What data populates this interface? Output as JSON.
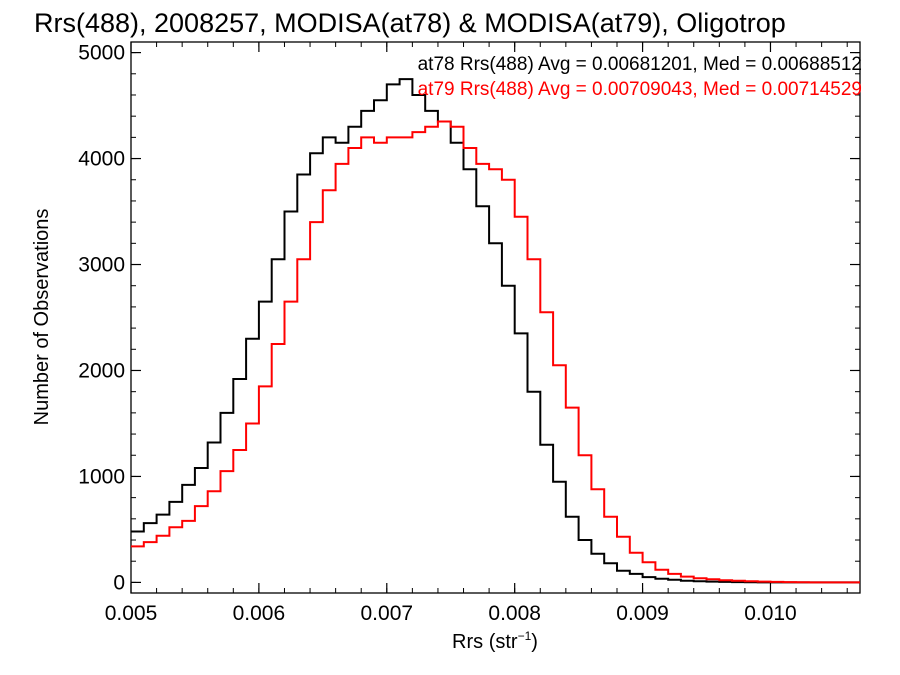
{
  "chart_data": {
    "type": "line",
    "title": "Rrs(488), 2008257, MODISA(at78) & MODISA(at79), Oligotrop",
    "xlabel_main": "Rrs (str",
    "xlabel_sup": "−1",
    "xlabel_close": ")",
    "ylabel": "Number of Observations",
    "xlim": [
      0.005,
      0.0107
    ],
    "ylim": [
      -100,
      5100
    ],
    "x_ticks": [
      0.005,
      0.006,
      0.007,
      0.008,
      0.009,
      0.01
    ],
    "x_tick_labels": [
      "0.005",
      "0.006",
      "0.007",
      "0.008",
      "0.009",
      "0.010"
    ],
    "y_ticks": [
      0,
      1000,
      2000,
      3000,
      4000,
      5000
    ],
    "y_tick_labels": [
      "0",
      "1000",
      "2000",
      "3000",
      "4000",
      "5000"
    ],
    "legend": [
      {
        "text": "at78 Rrs(488) Avg = 0.00681201, Med = 0.00688512",
        "color": "#000000"
      },
      {
        "text": "at79 Rrs(488) Avg = 0.00709043, Med = 0.00714529",
        "color": "#ff0000"
      }
    ],
    "series": [
      {
        "color": "#000000",
        "x": [
          0.005,
          0.0051,
          0.0052,
          0.0053,
          0.0054,
          0.0055,
          0.0056,
          0.0057,
          0.0058,
          0.0059,
          0.006,
          0.0061,
          0.0062,
          0.0063,
          0.0064,
          0.0065,
          0.0066,
          0.0067,
          0.0068,
          0.0069,
          0.007,
          0.0071,
          0.0072,
          0.0073,
          0.0074,
          0.0075,
          0.0076,
          0.0077,
          0.0078,
          0.0079,
          0.008,
          0.0081,
          0.0082,
          0.0083,
          0.0084,
          0.0085,
          0.0086,
          0.0087,
          0.0088,
          0.0089,
          0.009,
          0.0091,
          0.0092,
          0.0093,
          0.0094,
          0.0095,
          0.0096,
          0.0097,
          0.0098,
          0.0099,
          0.01,
          0.0101,
          0.0102,
          0.0103,
          0.0104,
          0.0105,
          0.0106,
          0.0107
        ],
        "y": [
          480,
          560,
          640,
          760,
          920,
          1080,
          1320,
          1600,
          1920,
          2300,
          2650,
          3050,
          3500,
          3850,
          4050,
          4200,
          4150,
          4300,
          4450,
          4550,
          4700,
          4750,
          4600,
          4450,
          4350,
          4150,
          3900,
          3550,
          3200,
          2800,
          2350,
          1800,
          1300,
          950,
          620,
          400,
          270,
          180,
          110,
          80,
          50,
          35,
          25,
          15,
          10,
          8,
          5,
          3,
          2,
          0,
          0,
          0,
          0,
          0,
          0,
          0,
          0,
          0
        ]
      },
      {
        "color": "#ff0000",
        "x": [
          0.005,
          0.0051,
          0.0052,
          0.0053,
          0.0054,
          0.0055,
          0.0056,
          0.0057,
          0.0058,
          0.0059,
          0.006,
          0.0061,
          0.0062,
          0.0063,
          0.0064,
          0.0065,
          0.0066,
          0.0067,
          0.0068,
          0.0069,
          0.007,
          0.0071,
          0.0072,
          0.0073,
          0.0074,
          0.0075,
          0.0076,
          0.0077,
          0.0078,
          0.0079,
          0.008,
          0.0081,
          0.0082,
          0.0083,
          0.0084,
          0.0085,
          0.0086,
          0.0087,
          0.0088,
          0.0089,
          0.009,
          0.0091,
          0.0092,
          0.0093,
          0.0094,
          0.0095,
          0.0096,
          0.0097,
          0.0098,
          0.0099,
          0.01,
          0.0101,
          0.0102,
          0.0103,
          0.0104,
          0.0105,
          0.0106,
          0.0107
        ],
        "y": [
          340,
          380,
          440,
          520,
          580,
          720,
          860,
          1050,
          1250,
          1500,
          1850,
          2250,
          2650,
          3050,
          3400,
          3700,
          3950,
          4100,
          4200,
          4150,
          4200,
          4200,
          4250,
          4300,
          4350,
          4300,
          4100,
          3950,
          3900,
          3800,
          3450,
          3050,
          2550,
          2050,
          1650,
          1200,
          880,
          620,
          430,
          280,
          190,
          120,
          80,
          55,
          40,
          30,
          20,
          15,
          10,
          8,
          5,
          3,
          2,
          0,
          0,
          0,
          0,
          0
        ]
      }
    ]
  }
}
